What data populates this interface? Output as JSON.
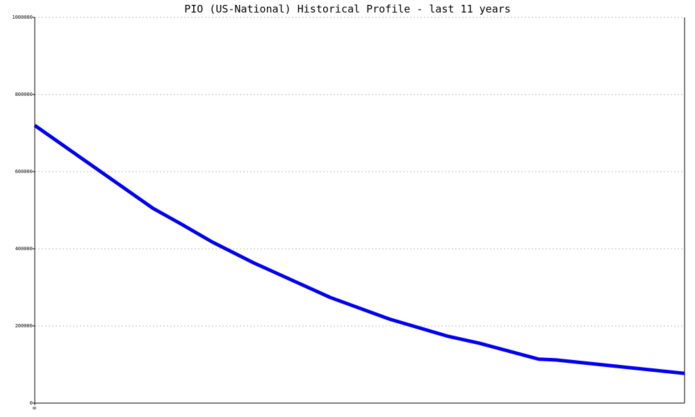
{
  "chart_data": {
    "type": "line",
    "title": "PIO (US-National) Historical Profile - last 11 years",
    "x": [
      0,
      2.0,
      2.47,
      3.0,
      3.7,
      5.0,
      6.0,
      7.0,
      7.53,
      8.53,
      8.82,
      11
    ],
    "series": [
      {
        "color": "#0000ee",
        "values": [
          720000,
          505000,
          465000,
          418000,
          364000,
          274000,
          218000,
          173000,
          155000,
          114000,
          112000,
          77000
        ]
      }
    ],
    "xlim": [
      0,
      11
    ],
    "xticks": [
      0
    ],
    "ylim": [
      0,
      1000000
    ],
    "yticks": [
      0,
      200000,
      400000,
      600000,
      800000,
      1000000
    ],
    "grid": true
  }
}
